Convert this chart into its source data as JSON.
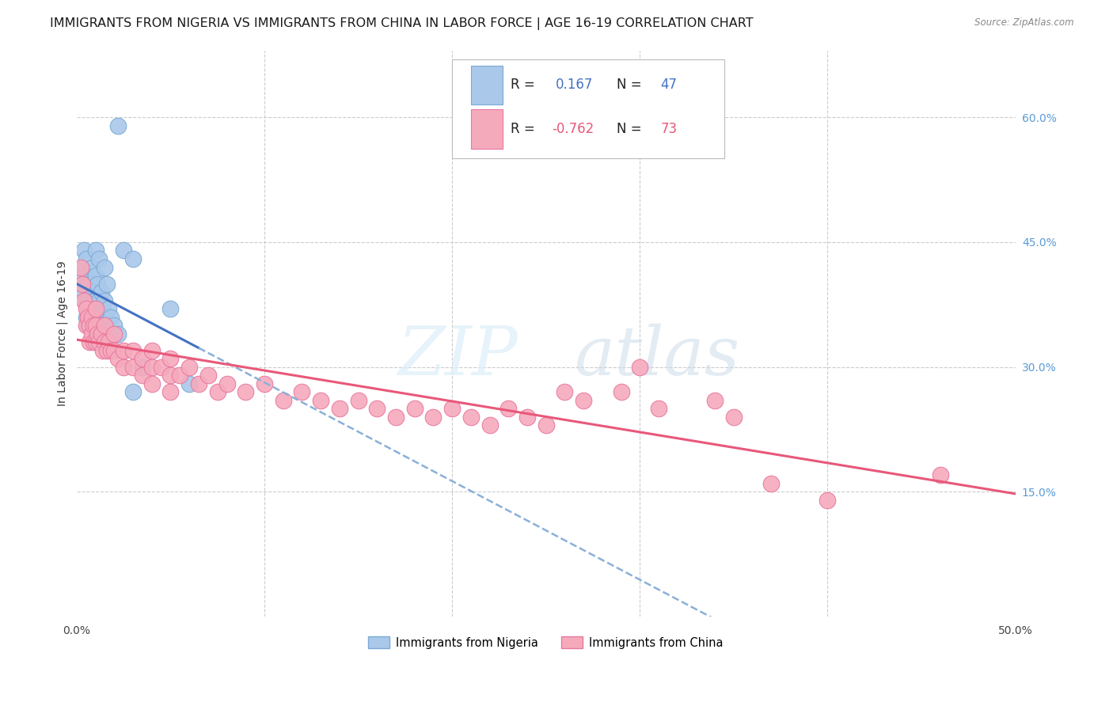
{
  "title": "IMMIGRANTS FROM NIGERIA VS IMMIGRANTS FROM CHINA IN LABOR FORCE | AGE 16-19 CORRELATION CHART",
  "source": "Source: ZipAtlas.com",
  "ylabel": "In Labor Force | Age 16-19",
  "xlim": [
    0.0,
    0.5
  ],
  "ylim": [
    0.0,
    0.68
  ],
  "grid_color": "#cccccc",
  "legend_r_nigeria": "0.167",
  "legend_n_nigeria": "47",
  "legend_r_china": "-0.762",
  "legend_n_china": "73",
  "nigeria_color": "#aac8ea",
  "nigeria_edge": "#7aaad4",
  "china_color": "#f5aabc",
  "china_edge": "#e878a0",
  "nigeria_line_color": "#4472c4",
  "nigeria_dash_color": "#8ab0d8",
  "china_line_color": "#e8587a",
  "title_fontsize": 11.5,
  "axis_label_fontsize": 10,
  "tick_fontsize": 10,
  "legend_fontsize": 12,
  "nigeria_scatter": [
    [
      0.002,
      0.395
    ],
    [
      0.003,
      0.42
    ],
    [
      0.004,
      0.44
    ],
    [
      0.004,
      0.41
    ],
    [
      0.005,
      0.43
    ],
    [
      0.005,
      0.4
    ],
    [
      0.005,
      0.38
    ],
    [
      0.005,
      0.36
    ],
    [
      0.006,
      0.38
    ],
    [
      0.006,
      0.37
    ],
    [
      0.006,
      0.36
    ],
    [
      0.006,
      0.35
    ],
    [
      0.007,
      0.4
    ],
    [
      0.007,
      0.38
    ],
    [
      0.007,
      0.36
    ],
    [
      0.007,
      0.35
    ],
    [
      0.008,
      0.42
    ],
    [
      0.008,
      0.39
    ],
    [
      0.008,
      0.37
    ],
    [
      0.008,
      0.35
    ],
    [
      0.009,
      0.38
    ],
    [
      0.009,
      0.36
    ],
    [
      0.01,
      0.44
    ],
    [
      0.01,
      0.41
    ],
    [
      0.01,
      0.38
    ],
    [
      0.01,
      0.36
    ],
    [
      0.011,
      0.4
    ],
    [
      0.011,
      0.37
    ],
    [
      0.012,
      0.43
    ],
    [
      0.012,
      0.38
    ],
    [
      0.013,
      0.39
    ],
    [
      0.013,
      0.36
    ],
    [
      0.014,
      0.37
    ],
    [
      0.015,
      0.42
    ],
    [
      0.015,
      0.38
    ],
    [
      0.016,
      0.4
    ],
    [
      0.017,
      0.37
    ],
    [
      0.018,
      0.36
    ],
    [
      0.02,
      0.35
    ],
    [
      0.022,
      0.34
    ],
    [
      0.025,
      0.44
    ],
    [
      0.03,
      0.43
    ],
    [
      0.03,
      0.27
    ],
    [
      0.035,
      0.3
    ],
    [
      0.05,
      0.37
    ],
    [
      0.022,
      0.59
    ],
    [
      0.06,
      0.28
    ]
  ],
  "china_scatter": [
    [
      0.002,
      0.42
    ],
    [
      0.003,
      0.4
    ],
    [
      0.004,
      0.38
    ],
    [
      0.005,
      0.37
    ],
    [
      0.005,
      0.35
    ],
    [
      0.006,
      0.36
    ],
    [
      0.007,
      0.35
    ],
    [
      0.007,
      0.33
    ],
    [
      0.008,
      0.36
    ],
    [
      0.008,
      0.34
    ],
    [
      0.009,
      0.35
    ],
    [
      0.009,
      0.33
    ],
    [
      0.01,
      0.37
    ],
    [
      0.01,
      0.35
    ],
    [
      0.01,
      0.33
    ],
    [
      0.011,
      0.34
    ],
    [
      0.012,
      0.33
    ],
    [
      0.013,
      0.34
    ],
    [
      0.014,
      0.32
    ],
    [
      0.015,
      0.35
    ],
    [
      0.015,
      0.33
    ],
    [
      0.016,
      0.32
    ],
    [
      0.017,
      0.33
    ],
    [
      0.018,
      0.32
    ],
    [
      0.02,
      0.34
    ],
    [
      0.02,
      0.32
    ],
    [
      0.022,
      0.31
    ],
    [
      0.025,
      0.32
    ],
    [
      0.025,
      0.3
    ],
    [
      0.03,
      0.32
    ],
    [
      0.03,
      0.3
    ],
    [
      0.035,
      0.31
    ],
    [
      0.035,
      0.29
    ],
    [
      0.04,
      0.32
    ],
    [
      0.04,
      0.3
    ],
    [
      0.04,
      0.28
    ],
    [
      0.045,
      0.3
    ],
    [
      0.05,
      0.31
    ],
    [
      0.05,
      0.29
    ],
    [
      0.05,
      0.27
    ],
    [
      0.055,
      0.29
    ],
    [
      0.06,
      0.3
    ],
    [
      0.065,
      0.28
    ],
    [
      0.07,
      0.29
    ],
    [
      0.075,
      0.27
    ],
    [
      0.08,
      0.28
    ],
    [
      0.09,
      0.27
    ],
    [
      0.1,
      0.28
    ],
    [
      0.11,
      0.26
    ],
    [
      0.12,
      0.27
    ],
    [
      0.13,
      0.26
    ],
    [
      0.14,
      0.25
    ],
    [
      0.15,
      0.26
    ],
    [
      0.16,
      0.25
    ],
    [
      0.17,
      0.24
    ],
    [
      0.18,
      0.25
    ],
    [
      0.19,
      0.24
    ],
    [
      0.2,
      0.25
    ],
    [
      0.21,
      0.24
    ],
    [
      0.22,
      0.23
    ],
    [
      0.23,
      0.25
    ],
    [
      0.24,
      0.24
    ],
    [
      0.25,
      0.23
    ],
    [
      0.26,
      0.27
    ],
    [
      0.27,
      0.26
    ],
    [
      0.29,
      0.27
    ],
    [
      0.3,
      0.3
    ],
    [
      0.31,
      0.25
    ],
    [
      0.34,
      0.26
    ],
    [
      0.35,
      0.24
    ],
    [
      0.37,
      0.16
    ],
    [
      0.4,
      0.14
    ],
    [
      0.46,
      0.17
    ]
  ]
}
